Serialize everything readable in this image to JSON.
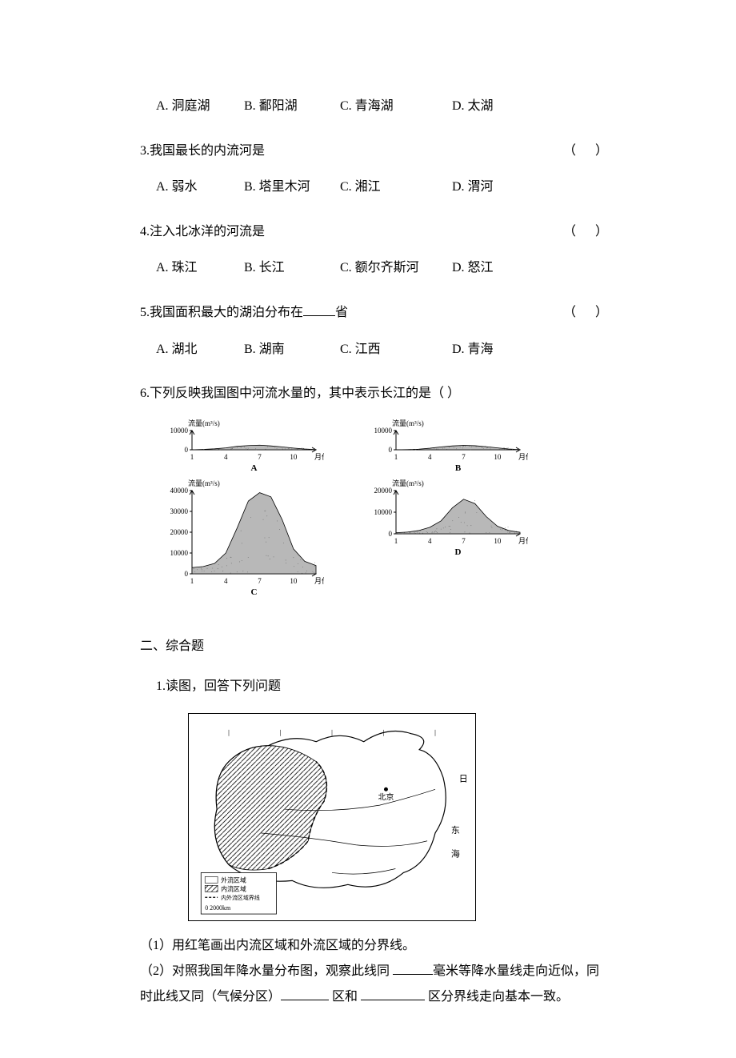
{
  "questions": [
    {
      "stem": "A. 洞庭湖",
      "opts": {
        "a": "A. 洞庭湖",
        "b": "B. 鄱阳湖",
        "c": "C. 青海湖",
        "d": "D. 太湖"
      }
    },
    {
      "num": "3.",
      "text": "我国最长的内流河是",
      "paren": "（      ）",
      "opts": {
        "a": "A. 弱水",
        "b": "B. 塔里木河",
        "c": "C. 湘江",
        "d": "D. 渭河"
      }
    },
    {
      "num": "4.",
      "text": "注入北冰洋的河流是",
      "paren": "（      ）",
      "opts": {
        "a": "A. 珠江",
        "b": "B. 长江",
        "c": "C. 额尔齐斯河",
        "d": "D. 怒江"
      }
    },
    {
      "num": "5.",
      "text_before": "我国面积最大的湖泊分布在",
      "text_after": "省",
      "paren": "（      ）",
      "opts": {
        "a": "A. 湖北",
        "b": "B. 湖南",
        "c": "C. 江西",
        "d": "D. 青海"
      }
    },
    {
      "num": "6.",
      "text": "下列反映我国图中河流水量的，其中表示长江的是（         ）"
    }
  ],
  "charts": {
    "ylabel": "流量(m³/s)",
    "xlabel": "月份",
    "x_ticks": [
      1,
      4,
      7,
      10
    ],
    "panels": {
      "A": {
        "ymax": 10000,
        "ytick": [
          0,
          10000
        ],
        "label": "A",
        "values": [
          0,
          200,
          500,
          1000,
          1800,
          2200,
          2400,
          2000,
          1500,
          900,
          400,
          100
        ]
      },
      "B": {
        "ymax": 10000,
        "ytick": [
          0,
          10000
        ],
        "label": "B",
        "values": [
          0,
          100,
          300,
          800,
          1500,
          2000,
          2300,
          2100,
          1600,
          1000,
          400,
          100
        ]
      },
      "C": {
        "ymax": 40000,
        "ytick": [
          0,
          10000,
          20000,
          30000,
          40000
        ],
        "label": "C",
        "values": [
          3000,
          3500,
          5000,
          10000,
          22000,
          35000,
          39000,
          37000,
          26000,
          12000,
          6000,
          4000
        ]
      },
      "D": {
        "ymax": 20000,
        "ytick": [
          0,
          10000,
          20000
        ],
        "label": "D",
        "values": [
          500,
          800,
          1500,
          3000,
          6000,
          12000,
          16000,
          14000,
          8000,
          3500,
          1500,
          700
        ]
      }
    },
    "colors": {
      "fill": "#b0b0b0",
      "stroke": "#000000",
      "bg": "#ffffff",
      "text": "#000000"
    },
    "font_size": 9
  },
  "section2": {
    "heading": "二、综合题",
    "q1": "1.读图，回答下列问题",
    "map": {
      "legend": {
        "item1": "外流区域",
        "item2": "内流区域",
        "item3": "内外流区域界线",
        "scale": "0    2000km"
      },
      "labels": [
        "北京",
        "东",
        "日",
        "海"
      ]
    },
    "parts": {
      "p1": "（1）用红笔画出内流区域和外流区域的分界线。",
      "p2_before": "（2）对照我国年降水量分布图，观察此线同 ",
      "p2_mid1": "毫米等降水量线走向近似，同时此线又同（气候分区）",
      "p2_mid2": " 区和 ",
      "p2_after": " 区分界线走向基本一致。"
    }
  }
}
